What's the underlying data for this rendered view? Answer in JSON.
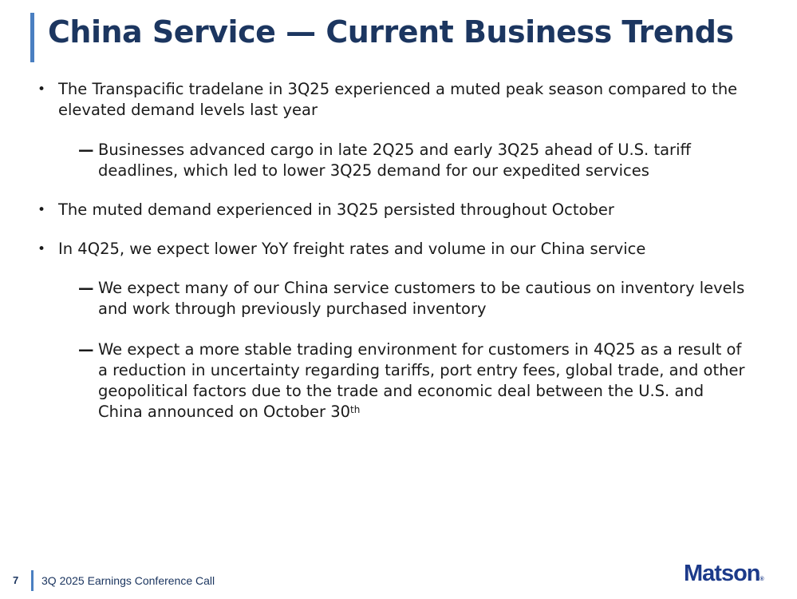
{
  "slide": {
    "title": "China Service — Current Business Trends"
  },
  "bullets": [
    {
      "level": 1,
      "marker": "•",
      "lines": [
        "The Transpacific tradelane in 3Q25 experienced a muted peak season compared to the",
        "elevated demand levels last year"
      ]
    },
    {
      "level": 2,
      "marker": "—",
      "lines": [
        "Businesses advanced cargo in late 2Q25 and early 3Q25 ahead of U.S. tariff",
        "deadlines, which led to lower 3Q25 demand for our expedited services"
      ]
    },
    {
      "level": 1,
      "marker": "•",
      "lines": [
        "The muted demand experienced in 3Q25 persisted throughout October"
      ]
    },
    {
      "level": 1,
      "marker": "•",
      "lines": [
        "In 4Q25, we expect lower YoY freight rates and volume in our China service"
      ]
    },
    {
      "level": 2,
      "marker": "—",
      "lines": [
        "We expect many of our China service customers to be cautious on inventory levels",
        "and work through previously purchased inventory"
      ]
    },
    {
      "level": 2,
      "marker": "—",
      "lines": [
        "We expect a more stable trading environment for customers in 4Q25 as a result of",
        "a reduction in uncertainty regarding tariffs, port entry fees, global trade, and other",
        "geopolitical factors due to the trade and economic deal between the U.S. and",
        "China announced on October 30"
      ],
      "last_line_superscript": "th"
    }
  ],
  "footer": {
    "page_number": "7",
    "text": "3Q 2025 Earnings Conference Call",
    "logo_text": "Matson",
    "logo_mark": "®"
  },
  "colors": {
    "title": "#1c3660",
    "accent_bar": "#4a7fc1",
    "logo": "#1c3a8a",
    "body_text": "#1a1a1a"
  }
}
